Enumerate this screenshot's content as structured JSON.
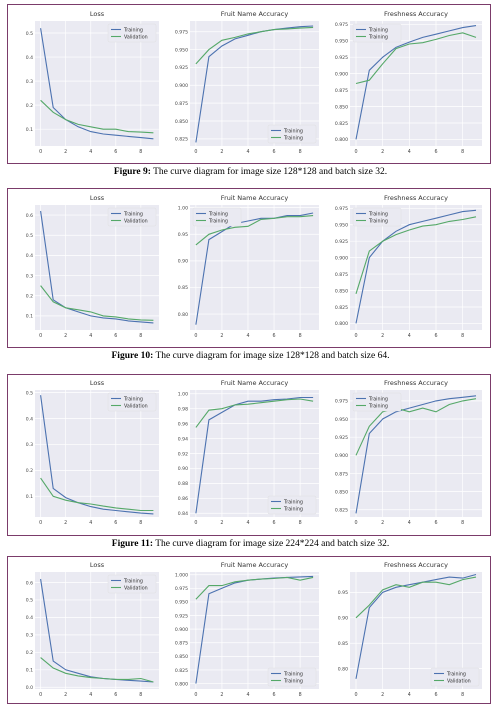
{
  "colors": {
    "training": "#4c72b0",
    "validation": "#55a868",
    "frame": "#7b3b6a",
    "grid": "#ffffff",
    "bg": "#eaeaf2"
  },
  "figures": [
    {
      "number_label": "Figure 9:",
      "caption": "The curve diagram for image size 128*128 and batch size 32."
    },
    {
      "number_label": "Figure 10:",
      "caption": "The curve diagram for image size 128*128 and batch size 64."
    },
    {
      "number_label": "Figure 11:",
      "caption": "The curve diagram for image size 224*224 and batch size 32."
    },
    {
      "number_label": "",
      "caption": ""
    }
  ],
  "chart_data": [
    {
      "type": "line",
      "title": "Loss",
      "x": [
        0,
        1,
        2,
        3,
        4,
        5,
        6,
        7,
        8,
        9
      ],
      "ylim": [
        0.03,
        0.55
      ],
      "yticks": [
        0.1,
        0.2,
        0.3,
        0.4,
        0.5
      ],
      "ytick_labels": [
        "0.1",
        "0.2",
        "0.3",
        "0.4",
        "0.5"
      ],
      "xticks": [
        0,
        2,
        4,
        6,
        8
      ],
      "legend": "top-right",
      "series": [
        {
          "name": "Training",
          "values": [
            0.52,
            0.19,
            0.14,
            0.11,
            0.09,
            0.08,
            0.075,
            0.07,
            0.065,
            0.06
          ]
        },
        {
          "name": "Validation",
          "values": [
            0.22,
            0.17,
            0.14,
            0.12,
            0.11,
            0.1,
            0.1,
            0.09,
            0.088,
            0.085
          ]
        }
      ]
    },
    {
      "type": "line",
      "title": "Fruit Name Accuracy",
      "x": [
        0,
        1,
        2,
        3,
        4,
        5,
        6,
        7,
        8,
        9
      ],
      "ylim": [
        0.815,
        0.99
      ],
      "yticks": [
        0.825,
        0.85,
        0.875,
        0.9,
        0.925,
        0.95,
        0.975
      ],
      "ytick_labels": [
        "0.825",
        "0.850",
        "0.875",
        "0.900",
        "0.925",
        "0.950",
        "0.975"
      ],
      "xticks": [
        0,
        2,
        4,
        6,
        8
      ],
      "legend": "bottom-right",
      "series": [
        {
          "name": "Training",
          "values": [
            0.82,
            0.94,
            0.955,
            0.965,
            0.97,
            0.975,
            0.978,
            0.98,
            0.982,
            0.983
          ]
        },
        {
          "name": "Training",
          "values": [
            0.93,
            0.95,
            0.963,
            0.967,
            0.972,
            0.975,
            0.978,
            0.979,
            0.98,
            0.981
          ]
        }
      ]
    },
    {
      "type": "line",
      "title": "Freshness Accuracy",
      "x": [
        0,
        1,
        2,
        3,
        4,
        5,
        6,
        7,
        8,
        9
      ],
      "ylim": [
        0.79,
        0.98
      ],
      "yticks": [
        0.8,
        0.825,
        0.85,
        0.875,
        0.9,
        0.925,
        0.95,
        0.975
      ],
      "ytick_labels": [
        "0.800",
        "0.825",
        "0.850",
        "0.875",
        "0.900",
        "0.925",
        "0.950",
        "0.975"
      ],
      "xticks": [
        0,
        2,
        4,
        6,
        8
      ],
      "legend": "top-left",
      "series": [
        {
          "name": "Training",
          "values": [
            0.8,
            0.905,
            0.925,
            0.94,
            0.948,
            0.955,
            0.96,
            0.965,
            0.97,
            0.973
          ]
        },
        {
          "name": "Training",
          "values": [
            0.885,
            0.89,
            0.915,
            0.938,
            0.945,
            0.947,
            0.952,
            0.958,
            0.962,
            0.955
          ]
        }
      ]
    },
    {
      "type": "line",
      "title": "Loss",
      "x": [
        0,
        1,
        2,
        3,
        4,
        5,
        6,
        7,
        8,
        9
      ],
      "ylim": [
        0.03,
        0.65
      ],
      "yticks": [
        0.1,
        0.2,
        0.3,
        0.4,
        0.5,
        0.6
      ],
      "ytick_labels": [
        "0.1",
        "0.2",
        "0.3",
        "0.4",
        "0.5",
        "0.6"
      ],
      "xticks": [
        0,
        2,
        4,
        6,
        8
      ],
      "legend": "top-right",
      "series": [
        {
          "name": "Training",
          "values": [
            0.62,
            0.18,
            0.14,
            0.12,
            0.1,
            0.09,
            0.085,
            0.075,
            0.07,
            0.065
          ]
        },
        {
          "name": "Validation",
          "values": [
            0.25,
            0.17,
            0.14,
            0.13,
            0.12,
            0.1,
            0.095,
            0.085,
            0.08,
            0.078
          ]
        }
      ]
    },
    {
      "type": "line",
      "title": "Fruit Name Accuracy",
      "x": [
        0,
        1,
        2,
        3,
        4,
        5,
        6,
        7,
        8,
        9
      ],
      "ylim": [
        0.77,
        1.005
      ],
      "yticks": [
        0.8,
        0.85,
        0.9,
        0.95,
        1.0
      ],
      "ytick_labels": [
        "0.80",
        "0.85",
        "0.90",
        "0.95",
        "1.00"
      ],
      "xticks": [
        0,
        2,
        4,
        6,
        8
      ],
      "legend": "top-left",
      "series": [
        {
          "name": "Training",
          "values": [
            0.78,
            0.94,
            0.955,
            0.97,
            0.975,
            0.98,
            0.98,
            0.985,
            0.985,
            0.99
          ]
        },
        {
          "name": "Training",
          "values": [
            0.93,
            0.95,
            0.958,
            0.963,
            0.965,
            0.978,
            0.98,
            0.983,
            0.983,
            0.985
          ]
        }
      ]
    },
    {
      "type": "line",
      "title": "Freshness Accuracy",
      "x": [
        0,
        1,
        2,
        3,
        4,
        5,
        6,
        7,
        8,
        9
      ],
      "ylim": [
        0.79,
        0.98
      ],
      "yticks": [
        0.8,
        0.825,
        0.85,
        0.875,
        0.9,
        0.925,
        0.95,
        0.975
      ],
      "ytick_labels": [
        "0.800",
        "0.825",
        "0.850",
        "0.875",
        "0.900",
        "0.925",
        "0.950",
        "0.975"
      ],
      "xticks": [
        0,
        2,
        4,
        6,
        8
      ],
      "legend": "top-left",
      "series": [
        {
          "name": "Training",
          "values": [
            0.8,
            0.9,
            0.925,
            0.94,
            0.95,
            0.955,
            0.96,
            0.965,
            0.97,
            0.972
          ]
        },
        {
          "name": "Training",
          "values": [
            0.845,
            0.91,
            0.925,
            0.935,
            0.942,
            0.948,
            0.95,
            0.955,
            0.958,
            0.962
          ]
        }
      ]
    },
    {
      "type": "line",
      "title": "Loss",
      "x": [
        0,
        1,
        2,
        3,
        4,
        5,
        6,
        7,
        8,
        9
      ],
      "ylim": [
        0.02,
        0.51
      ],
      "yticks": [
        0.1,
        0.2,
        0.3,
        0.4,
        0.5
      ],
      "ytick_labels": [
        "0.1",
        "0.2",
        "0.3",
        "0.4",
        "0.5"
      ],
      "xticks": [
        0,
        2,
        4,
        6,
        8
      ],
      "legend": "top-right",
      "series": [
        {
          "name": "Training",
          "values": [
            0.49,
            0.13,
            0.095,
            0.075,
            0.06,
            0.05,
            0.045,
            0.04,
            0.035,
            0.032
          ]
        },
        {
          "name": "Validation",
          "values": [
            0.17,
            0.1,
            0.085,
            0.075,
            0.07,
            0.062,
            0.055,
            0.05,
            0.045,
            0.045
          ]
        }
      ]
    },
    {
      "type": "line",
      "title": "Fruit Name Accuracy",
      "x": [
        0,
        1,
        2,
        3,
        4,
        5,
        6,
        7,
        8,
        9
      ],
      "ylim": [
        0.835,
        1.005
      ],
      "yticks": [
        0.84,
        0.86,
        0.88,
        0.9,
        0.92,
        0.94,
        0.96,
        0.98,
        1.0
      ],
      "ytick_labels": [
        "0.84",
        "0.86",
        "0.88",
        "0.90",
        "0.92",
        "0.94",
        "0.96",
        "0.98",
        "1.00"
      ],
      "xticks": [
        0,
        2,
        4,
        6,
        8
      ],
      "legend": "bottom-right",
      "series": [
        {
          "name": "Training",
          "values": [
            0.84,
            0.965,
            0.975,
            0.985,
            0.99,
            0.99,
            0.992,
            0.993,
            0.995,
            0.995
          ]
        },
        {
          "name": "Training",
          "values": [
            0.955,
            0.978,
            0.98,
            0.985,
            0.986,
            0.988,
            0.99,
            0.992,
            0.993,
            0.99
          ]
        }
      ]
    },
    {
      "type": "line",
      "title": "Freshness Accuracy",
      "x": [
        0,
        1,
        2,
        3,
        4,
        5,
        6,
        7,
        8,
        9
      ],
      "ylim": [
        0.815,
        0.99
      ],
      "yticks": [
        0.825,
        0.85,
        0.875,
        0.9,
        0.925,
        0.95,
        0.975
      ],
      "ytick_labels": [
        "0.825",
        "0.850",
        "0.875",
        "0.900",
        "0.925",
        "0.950",
        "0.975"
      ],
      "xticks": [
        0,
        2,
        4,
        6,
        8
      ],
      "legend": "top-left",
      "series": [
        {
          "name": "Training",
          "values": [
            0.82,
            0.93,
            0.95,
            0.96,
            0.965,
            0.97,
            0.975,
            0.978,
            0.98,
            0.982
          ]
        },
        {
          "name": "Training",
          "values": [
            0.9,
            0.94,
            0.96,
            0.965,
            0.96,
            0.965,
            0.96,
            0.97,
            0.975,
            0.978
          ]
        }
      ]
    },
    {
      "type": "line",
      "title": "Loss",
      "x": [
        0,
        1,
        2,
        3,
        4,
        5,
        6,
        7,
        8,
        9
      ],
      "ylim": [
        -0.01,
        0.66
      ],
      "yticks": [
        0.0,
        0.1,
        0.2,
        0.3,
        0.4,
        0.5,
        0.6
      ],
      "ytick_labels": [
        "0.0",
        "0.1",
        "0.2",
        "0.3",
        "0.4",
        "0.5",
        "0.6"
      ],
      "xticks": [
        0,
        2,
        4,
        6,
        8
      ],
      "legend": "top-right",
      "series": [
        {
          "name": "Training",
          "values": [
            0.62,
            0.15,
            0.1,
            0.08,
            0.06,
            0.05,
            0.045,
            0.04,
            0.035,
            0.03
          ]
        },
        {
          "name": "Validation",
          "values": [
            0.17,
            0.11,
            0.08,
            0.065,
            0.055,
            0.05,
            0.045,
            0.045,
            0.05,
            0.03
          ]
        }
      ]
    },
    {
      "type": "line",
      "title": "Fruit Name Accuracy",
      "x": [
        0,
        1,
        2,
        3,
        4,
        5,
        6,
        7,
        8,
        9
      ],
      "ylim": [
        0.79,
        1.005
      ],
      "yticks": [
        0.8,
        0.825,
        0.85,
        0.875,
        0.9,
        0.925,
        0.95,
        0.975,
        1.0
      ],
      "ytick_labels": [
        "0.800",
        "0.825",
        "0.850",
        "0.875",
        "0.900",
        "0.925",
        "0.950",
        "0.975",
        "1.000"
      ],
      "xticks": [
        0,
        2,
        4,
        6,
        8
      ],
      "legend": "bottom-right",
      "series": [
        {
          "name": "Training",
          "values": [
            0.8,
            0.965,
            0.975,
            0.985,
            0.99,
            0.992,
            0.994,
            0.995,
            0.996,
            0.997
          ]
        },
        {
          "name": "Training",
          "values": [
            0.955,
            0.98,
            0.98,
            0.987,
            0.99,
            0.992,
            0.993,
            0.995,
            0.99,
            0.995
          ]
        }
      ]
    },
    {
      "type": "line",
      "title": "Freshness Accuracy",
      "x": [
        0,
        1,
        2,
        3,
        4,
        5,
        6,
        7,
        8,
        9
      ],
      "ylim": [
        0.76,
        0.99
      ],
      "yticks": [
        0.8,
        0.85,
        0.9,
        0.95
      ],
      "ytick_labels": [
        "0.80",
        "0.85",
        "0.90",
        "0.95"
      ],
      "xticks": [
        0,
        2,
        4,
        6,
        8
      ],
      "legend": "bottom-right",
      "series": [
        {
          "name": "Training",
          "values": [
            0.78,
            0.92,
            0.95,
            0.96,
            0.965,
            0.97,
            0.975,
            0.98,
            0.978,
            0.985
          ]
        },
        {
          "name": "Validation",
          "values": [
            0.9,
            0.925,
            0.955,
            0.965,
            0.96,
            0.97,
            0.97,
            0.965,
            0.975,
            0.98
          ]
        }
      ]
    }
  ]
}
